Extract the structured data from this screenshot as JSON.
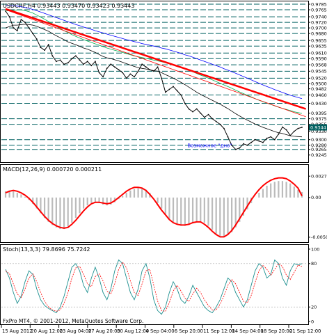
{
  "chart_data": [
    {
      "type": "line",
      "title": "USDCHF,H4  0.93443 0.93470 0.93423 0.93443",
      "symbol": "USDCHF,H4",
      "ohlc": [
        "0.93443",
        "0.93470",
        "0.93423",
        "0.93443"
      ],
      "ylim": [
        0.9227,
        0.9785
      ],
      "y_ticks": [
        "0.9785",
        "0.9765",
        "0.9740",
        "0.9720",
        "0.9700",
        "0.9680",
        "0.9655",
        "0.9635",
        "0.9610",
        "0.9590",
        "0.9568",
        "0.9545",
        "0.9520",
        "0.9500",
        "0.9482",
        "0.9460",
        "0.9430",
        "0.9395",
        "0.9375",
        "0.9355",
        "0.9330",
        "0.9300",
        "0.9280",
        "0.9265",
        "0.9245"
      ],
      "current_price": "0.9344",
      "support_resistance_levels": [
        0.9785,
        0.9765,
        0.974,
        0.972,
        0.97,
        0.968,
        0.9655,
        0.9635,
        0.961,
        0.959,
        0.9568,
        0.9545,
        0.952,
        0.95,
        0.946,
        0.943,
        0.9375,
        0.9355,
        0.93,
        0.928,
        0.9265
      ],
      "series": [
        {
          "values": [
            0.976,
            0.974,
            0.97,
            0.969,
            0.973,
            0.972,
            0.97,
            0.968,
            0.966,
            0.963,
            0.962,
            0.964,
            0.96,
            0.958,
            0.9585,
            0.957,
            0.9575,
            0.959,
            0.96,
            0.9585,
            0.957,
            0.958,
            0.9565,
            0.958,
            0.954,
            0.9525,
            0.9555,
            0.957,
            0.956,
            0.955,
            0.954,
            0.952,
            0.9535,
            0.9525,
            0.9545,
            0.957,
            0.956,
            0.955,
            0.9545,
            0.956,
            0.952,
            0.947,
            0.948,
            0.949,
            0.9475,
            0.946,
            0.943,
            0.941,
            0.94,
            0.941,
            0.9395,
            0.938,
            0.939,
            0.9375,
            0.9365,
            0.9355,
            0.934,
            0.931,
            0.928,
            0.9265,
            0.927,
            0.9285,
            0.928,
            0.929,
            0.93,
            0.9295,
            0.929,
            0.9305,
            0.931,
            0.93,
            0.932,
            0.9345,
            0.9335,
            0.9315,
            0.933,
            0.934,
            0.9344
          ]
        },
        {
          "values": [
            0.97,
            0.9705,
            0.971,
            0.971,
            0.9712,
            0.9713,
            0.9712,
            0.971,
            0.9706,
            0.97,
            0.9694,
            0.9688,
            0.968,
            0.9672,
            0.9665,
            0.9658,
            0.965,
            0.9645,
            0.964,
            0.9634,
            0.9628,
            0.9624,
            0.9618,
            0.9612,
            0.9605,
            0.9598,
            0.9593,
            0.959,
            0.9586,
            0.9582,
            0.9577,
            0.9572,
            0.9567,
            0.9562,
            0.9558,
            0.9555,
            0.9553,
            0.955,
            0.9547,
            0.9545,
            0.954,
            0.9533,
            0.9527,
            0.952,
            0.9513,
            0.9505,
            0.9497,
            0.9488,
            0.9479,
            0.947,
            0.9462,
            0.9455,
            0.9448,
            0.9441,
            0.9434,
            0.9427,
            0.9419,
            0.9411,
            0.9402,
            0.9393,
            0.9385,
            0.9377,
            0.937,
            0.9363,
            0.9356,
            0.935,
            0.9344,
            0.9339,
            0.9334,
            0.9329,
            0.9325,
            0.9322,
            0.9318,
            0.9314,
            0.9312,
            0.9311,
            0.931
          ]
        },
        {
          "values": [
            0.976,
            0.9762,
            0.9763,
            0.9764,
            0.9764,
            0.9762,
            0.9758,
            0.9753,
            0.9746,
            0.9739,
            0.9731,
            0.9723,
            0.9715,
            0.9706,
            0.9698,
            0.969,
            0.9683,
            0.9676,
            0.967,
            0.9664,
            0.9658,
            0.9653,
            0.9648,
            0.9643,
            0.9638,
            0.9633,
            0.9628,
            0.9624,
            0.962,
            0.9616,
            0.9612,
            0.9608,
            0.9604,
            0.96,
            0.9597,
            0.9594,
            0.9591,
            0.9588,
            0.9585,
            0.9582,
            0.9579,
            0.9575,
            0.9571,
            0.9567,
            0.9563,
            0.9558,
            0.9553,
            0.9548,
            0.9543,
            0.9537,
            0.9531,
            0.9526,
            0.952,
            0.9514,
            0.9508,
            0.9502,
            0.9496,
            0.949,
            0.9484,
            0.9477,
            0.9471,
            0.9465,
            0.9459,
            0.9453,
            0.9447,
            0.9441,
            0.9436,
            0.9431,
            0.9426,
            0.9421,
            0.9416,
            0.9412,
            0.9408,
            0.9404,
            0.94,
            0.9397,
            0.9394
          ]
        },
        {
          "values": [
            0.978,
            0.978,
            0.9779,
            0.9778,
            0.9776,
            0.9773,
            0.977,
            0.9766,
            0.9762,
            0.9757,
            0.9752,
            0.9747,
            0.9742,
            0.9737,
            0.9732,
            0.9727,
            0.9722,
            0.9717,
            0.9712,
            0.9708,
            0.9703,
            0.9699,
            0.9695,
            0.969,
            0.9686,
            0.9682,
            0.9678,
            0.9674,
            0.967,
            0.9666,
            0.9662,
            0.9658,
            0.9655,
            0.9651,
            0.9648,
            0.9644,
            0.9641,
            0.9638,
            0.9635,
            0.9632,
            0.9628,
            0.9625,
            0.9621,
            0.9617,
            0.9613,
            0.9609,
            0.9604,
            0.96,
            0.9595,
            0.959,
            0.9585,
            0.958,
            0.9575,
            0.957,
            0.9565,
            0.956,
            0.9554,
            0.9549,
            0.9543,
            0.9538,
            0.9532,
            0.9526,
            0.952,
            0.9514,
            0.9508,
            0.9502,
            0.9496,
            0.949,
            0.9485,
            0.9479,
            0.9474,
            0.9469,
            0.9464,
            0.9459,
            0.9455,
            0.9451,
            0.9447
          ]
        }
      ],
      "trendlines": [
        {
          "color": "#ff0000",
          "from": [
            0,
            0.9768
          ],
          "to": [
            77,
            0.941
          ]
        },
        {
          "color": "#ff0000",
          "from": [
            0,
            0.9765
          ],
          "to": [
            77,
            0.9382
          ]
        }
      ],
      "annotations": [
        {
          "text": "Возможное \"дно\"",
          "x": 60,
          "y": 0.9273
        }
      ]
    },
    {
      "type": "line",
      "title": "MACD(12,26,9) 0.000720 0.000211",
      "ylim": [
        -0.0055,
        0.003
      ],
      "y_ticks": [
        "0.002719",
        "0.00",
        "-0.00505"
      ],
      "series": [
        {
          "values": [
            0.0008,
            0.0009,
            0.0008,
            0.0006,
            0.0004,
            0.0001,
            -0.0003,
            -0.0008,
            -0.0014,
            -0.002,
            -0.0026,
            -0.0031,
            -0.0035,
            -0.0038,
            -0.004,
            -0.004,
            -0.0037,
            -0.0032,
            -0.0026,
            -0.002,
            -0.0014,
            -0.001,
            -0.0007,
            -0.0006,
            -0.0007,
            -0.0009,
            -0.001,
            -0.0009,
            -0.0006,
            -0.0002,
            0.0002,
            0.0006,
            0.0009,
            0.0011,
            0.0012,
            0.0012,
            0.001,
            0.0006,
            0.0,
            -0.0007,
            -0.0014,
            -0.0021,
            -0.0027,
            -0.0031,
            -0.0034,
            -0.0036,
            -0.0036,
            -0.0035,
            -0.0033,
            -0.0031,
            -0.003,
            -0.0032,
            -0.0036,
            -0.0041,
            -0.0046,
            -0.0049,
            -0.005,
            -0.0048,
            -0.0044,
            -0.0038,
            -0.0031,
            -0.0023,
            -0.0015,
            -0.0007,
            0.0,
            0.0006,
            0.0011,
            0.0015,
            0.0018,
            0.002,
            0.0021,
            0.0021,
            0.002,
            0.0018,
            0.0014,
            0.001,
            0.0007
          ]
        },
        {
          "values": [
            0.0006,
            0.0008,
            0.0009,
            0.0008,
            0.0006,
            0.0003,
            -0.0001,
            -0.0006,
            -0.0012,
            -0.0018,
            -0.0024,
            -0.0029,
            -0.0033,
            -0.0036,
            -0.0038,
            -0.0039,
            -0.0038,
            -0.0034,
            -0.0029,
            -0.0023,
            -0.0017,
            -0.0012,
            -0.0008,
            -0.0006,
            -0.0006,
            -0.0007,
            -0.0008,
            -0.0007,
            -0.0004,
            0.0,
            0.0004,
            0.0008,
            0.0011,
            0.0013,
            0.0013,
            0.0012,
            0.0009,
            0.0004,
            -0.0002,
            -0.0009,
            -0.0016,
            -0.0022,
            -0.0028,
            -0.0032,
            -0.0034,
            -0.0035,
            -0.0035,
            -0.0034,
            -0.0032,
            -0.0031,
            -0.0031,
            -0.0034,
            -0.0038,
            -0.0043,
            -0.0047,
            -0.005,
            -0.005,
            -0.0047,
            -0.0042,
            -0.0035,
            -0.0027,
            -0.0019,
            -0.0011,
            -0.0003,
            0.0004,
            0.001,
            0.0015,
            0.0019,
            0.0022,
            0.0024,
            0.0025,
            0.0025,
            0.0024,
            0.0021,
            0.0017,
            0.0012,
            0.0002
          ]
        }
      ]
    },
    {
      "type": "line",
      "title": "Stoch(13,3,3) 79.8696 75.7242",
      "ylim": [
        0,
        100
      ],
      "y_ticks": [
        "100",
        "80",
        "20",
        "0"
      ],
      "series": [
        {
          "values": [
            72,
            60,
            40,
            25,
            35,
            55,
            70,
            65,
            45,
            30,
            22,
            18,
            15,
            12,
            20,
            35,
            55,
            75,
            80,
            70,
            50,
            40,
            60,
            75,
            60,
            40,
            30,
            45,
            70,
            85,
            80,
            60,
            40,
            30,
            45,
            70,
            80,
            60,
            30,
            15,
            10,
            20,
            40,
            55,
            45,
            30,
            25,
            35,
            50,
            40,
            30,
            20,
            15,
            12,
            20,
            30,
            45,
            60,
            55,
            40,
            30,
            20,
            30,
            50,
            70,
            80,
            75,
            60,
            65,
            85,
            80,
            60,
            50,
            70,
            80,
            78,
            80
          ]
        },
        {
          "values": [
            70,
            66,
            52,
            38,
            33,
            45,
            60,
            66,
            55,
            40,
            28,
            20,
            16,
            14,
            16,
            25,
            40,
            60,
            74,
            76,
            65,
            52,
            48,
            62,
            66,
            56,
            42,
            38,
            52,
            72,
            82,
            74,
            56,
            40,
            36,
            52,
            70,
            72,
            50,
            28,
            15,
            14,
            26,
            42,
            50,
            42,
            32,
            28,
            38,
            46,
            40,
            30,
            22,
            16,
            16,
            24,
            35,
            50,
            58,
            52,
            40,
            28,
            26,
            36,
            54,
            70,
            78,
            72,
            64,
            72,
            80,
            76,
            64,
            58,
            68,
            78,
            76
          ]
        }
      ]
    }
  ],
  "x_labels": [
    "15 Aug 2012",
    "20 Aug 12:00",
    "23 Aug 04:00",
    "27 Aug 20:00",
    "30 Aug 12:00",
    "4 Sep 04:00",
    "6 Sep 20:00",
    "11 Sep 12:00",
    "14 Sep 04:00",
    "18 Sep 20:00",
    "21 Sep 12:00"
  ],
  "footer": "FxPro MT4, © 2001-2012, MetaQuotes Software Corp.",
  "colors": {
    "background": "#ffffff",
    "price": "#000000",
    "sma_fast": "#000000",
    "sma_mid": "#00b050",
    "sma_slow": "#0000ff",
    "trendline": "#ff0000",
    "levels": "#006060",
    "macd_hist": "#bbbbbb",
    "macd_signal": "#ff0000",
    "stoch_main": "#1e9090",
    "stoch_signal": "#ff0000",
    "label_bg": "#006060",
    "annotation": "#0000ff"
  }
}
